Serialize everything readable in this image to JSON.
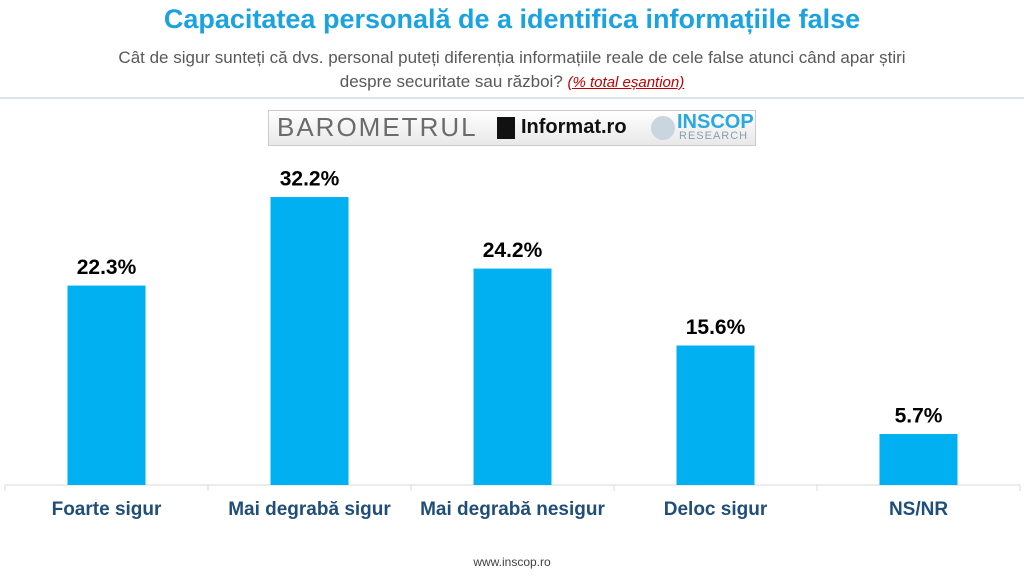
{
  "chart_data": {
    "type": "bar",
    "title": "Capacitatea personală de a identifica informațiile false",
    "subtitle": "Cât de sigur sunteți că dvs. personal puteți diferenția informațiile reale de cele false atunci când apar știri despre securitate sau război?",
    "subtitle_note": "(% total eșantion)",
    "categories": [
      "Foarte sigur",
      "Mai degrabă sigur",
      "Mai degrabă nesigur",
      "Deloc sigur",
      "NS/NR"
    ],
    "values": [
      22.3,
      32.2,
      24.2,
      15.6,
      5.7
    ],
    "value_labels": [
      "22.3%",
      "32.2%",
      "24.2%",
      "15.6%",
      "5.7%"
    ],
    "color": "#00b0f0",
    "ylim": [
      0,
      35
    ]
  },
  "logo": {
    "barometer": "BAROMETRUL",
    "partner": "Informat.ro",
    "brand": "INSCOP",
    "brand_sub": "RESEARCH"
  },
  "footer": "www.inscop.ro"
}
